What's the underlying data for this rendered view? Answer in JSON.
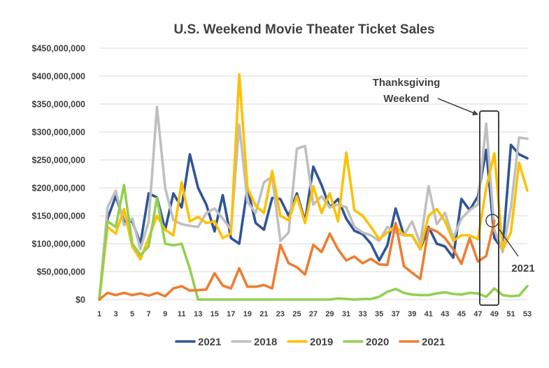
{
  "chart_data": {
    "type": "line",
    "title": "U.S. Weekend Movie Theater Ticket Sales",
    "xlabel": "",
    "ylabel": "",
    "ylim": [
      0,
      450000000
    ],
    "y_ticks": [
      0,
      50000000,
      100000000,
      150000000,
      200000000,
      250000000,
      300000000,
      350000000,
      400000000,
      450000000
    ],
    "y_tick_labels": [
      "$0",
      "$50,000,000",
      "$100,000,000",
      "$150,000,000",
      "$200,000,000",
      "$250,000,000",
      "$300,000,000",
      "$350,000,000",
      "$400,000,000",
      "$450,000,000"
    ],
    "xlim": [
      1,
      53
    ],
    "x_tick_labels": [
      "1",
      "3",
      "5",
      "7",
      "9",
      "11",
      "13",
      "15",
      "17",
      "19",
      "21",
      "23",
      "25",
      "27",
      "29",
      "31",
      "33",
      "35",
      "37",
      "39",
      "41",
      "43",
      "45",
      "47",
      "49",
      "51",
      "53"
    ],
    "grid": true,
    "legend_position": "bottom",
    "series": [
      {
        "name": "2021",
        "color": "#2f5597",
        "x_start": 1,
        "values": [
          0,
          145000000,
          185000000,
          140000000,
          140000000,
          100000000,
          190000000,
          183000000,
          125000000,
          190000000,
          165000000,
          260000000,
          200000000,
          170000000,
          122000000,
          187000000,
          110000000,
          100000000,
          200000000,
          137000000,
          125000000,
          182000000,
          180000000,
          150000000,
          190000000,
          140000000,
          238000000,
          205000000,
          165000000,
          180000000,
          145000000,
          123000000,
          117000000,
          100000000,
          70000000,
          97000000,
          163000000,
          115000000,
          115000000,
          90000000,
          130000000,
          100000000,
          95000000,
          75000000,
          180000000,
          160000000,
          185000000,
          268000000,
          110000000,
          90000000,
          277000000,
          260000000,
          253000000
        ]
      },
      {
        "name": "2018",
        "color": "#bfbfbf",
        "x_start": 1,
        "values": [
          0,
          165000000,
          195000000,
          133000000,
          145000000,
          90000000,
          140000000,
          345000000,
          200000000,
          142000000,
          135000000,
          132000000,
          130000000,
          155000000,
          163000000,
          145000000,
          125000000,
          313000000,
          175000000,
          155000000,
          210000000,
          220000000,
          105000000,
          120000000,
          270000000,
          275000000,
          170000000,
          185000000,
          165000000,
          170000000,
          165000000,
          130000000,
          120000000,
          115000000,
          105000000,
          130000000,
          120000000,
          115000000,
          140000000,
          100000000,
          203000000,
          135000000,
          155000000,
          110000000,
          145000000,
          160000000,
          170000000,
          315000000,
          125000000,
          85000000,
          165000000,
          290000000,
          288000000
        ]
      },
      {
        "name": "2019",
        "color": "#ffc000",
        "x_start": 1,
        "values": [
          0,
          130000000,
          118000000,
          162000000,
          95000000,
          72000000,
          110000000,
          150000000,
          125000000,
          115000000,
          210000000,
          140000000,
          148000000,
          137000000,
          140000000,
          110000000,
          118000000,
          403000000,
          200000000,
          168000000,
          155000000,
          230000000,
          150000000,
          142000000,
          185000000,
          137000000,
          203000000,
          155000000,
          190000000,
          140000000,
          263000000,
          160000000,
          150000000,
          130000000,
          108000000,
          120000000,
          132000000,
          115000000,
          115000000,
          90000000,
          150000000,
          162000000,
          140000000,
          105000000,
          115000000,
          115000000,
          108000000,
          200000000,
          262000000,
          90000000,
          120000000,
          245000000,
          195000000
        ]
      },
      {
        "name": "2020",
        "color": "#92d050",
        "x_start": 1,
        "values": [
          0,
          140000000,
          130000000,
          205000000,
          100000000,
          80000000,
          95000000,
          182000000,
          100000000,
          97000000,
          100000000,
          55000000,
          0,
          0,
          0,
          0,
          0,
          0,
          0,
          0,
          0,
          0,
          0,
          0,
          0,
          0,
          0,
          0,
          0,
          2000000,
          1000000,
          0,
          1000000,
          1000000,
          5000000,
          14000000,
          19000000,
          12000000,
          9000000,
          8000000,
          8000000,
          11000000,
          13000000,
          10000000,
          9000000,
          12000000,
          11000000,
          5000000,
          20000000,
          8000000,
          6000000,
          7000000,
          24000000
        ]
      },
      {
        "name": "2021",
        "color": "#ed7d31",
        "x_start": 1,
        "values": [
          0,
          12000000,
          8000000,
          12000000,
          8000000,
          11000000,
          7000000,
          12000000,
          6000000,
          20000000,
          24000000,
          16000000,
          17000000,
          18000000,
          47000000,
          25000000,
          20000000,
          56000000,
          23000000,
          23000000,
          26000000,
          20000000,
          98000000,
          65000000,
          58000000,
          45000000,
          98000000,
          85000000,
          118000000,
          90000000,
          70000000,
          77000000,
          65000000,
          73000000,
          63000000,
          62000000,
          137000000,
          60000000,
          48000000,
          37000000,
          128000000,
          122000000,
          110000000,
          90000000,
          64000000,
          110000000,
          68000000,
          78000000,
          141000000
        ]
      }
    ],
    "annotations": [
      {
        "text": "Thanksgiving",
        "target": "box around week 48"
      },
      {
        "text": "Weekend",
        "target": "box around week 48"
      },
      {
        "text": "2021",
        "target": "circle at week 49"
      }
    ]
  }
}
